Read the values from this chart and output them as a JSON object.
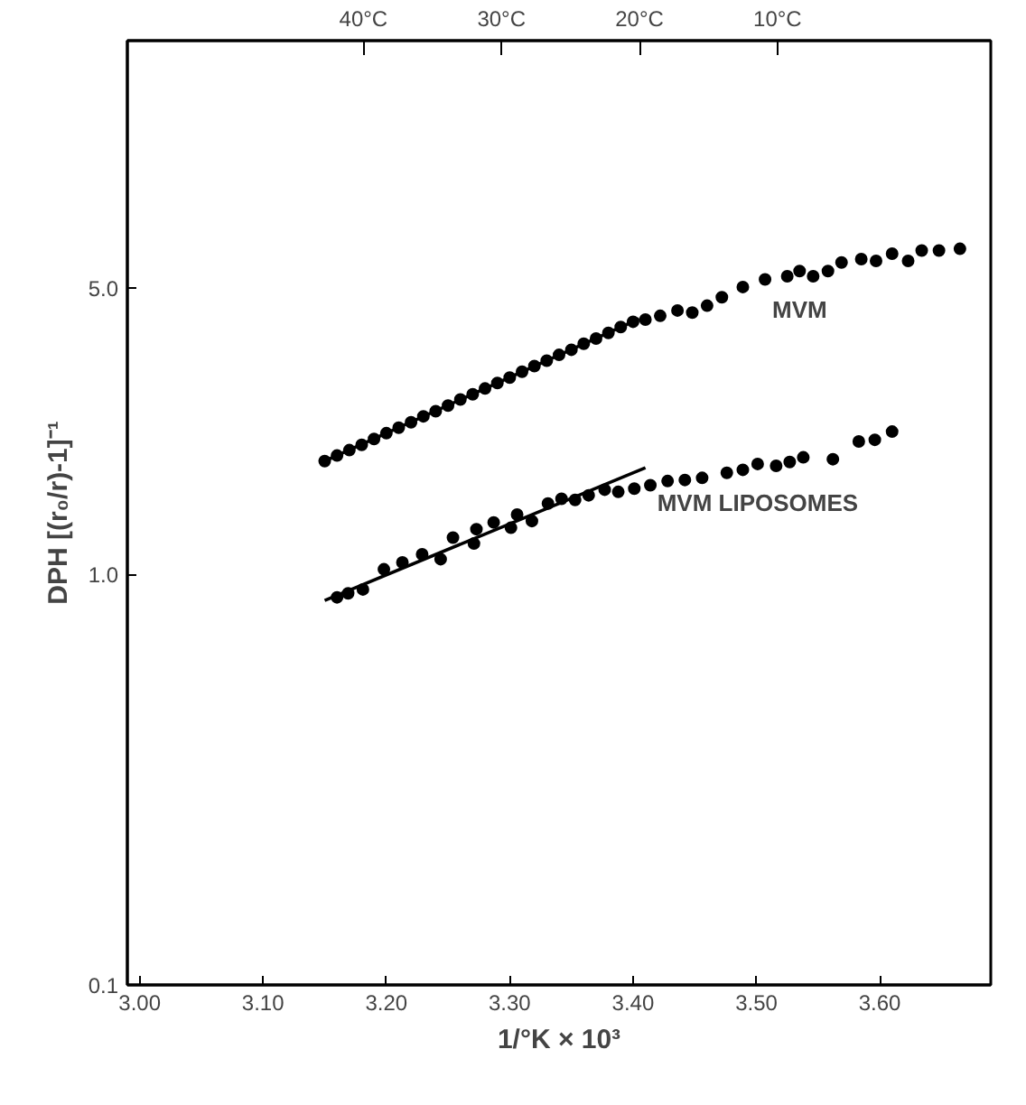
{
  "chart_data": {
    "type": "scatter",
    "xlabel": "1/°K × 10³",
    "ylabel": "DPH [(r₀/r)-1]⁻¹",
    "xlim": [
      2.99,
      3.69
    ],
    "xticks": [
      {
        "value": 3.0,
        "label": "3.00"
      },
      {
        "value": 3.1,
        "label": "3.10"
      },
      {
        "value": 3.2,
        "label": "3.20"
      },
      {
        "value": 3.3,
        "label": "3.30"
      },
      {
        "value": 3.4,
        "label": "3.40"
      },
      {
        "value": 3.5,
        "label": "3.50"
      },
      {
        "value": 3.6,
        "label": "3.60"
      }
    ],
    "ylim": [
      0.1,
      20
    ],
    "yticks": [
      0.1,
      {
        "value": 1,
        "label": "1.0"
      },
      {
        "value": 5,
        "label": "5.0"
      }
    ],
    "log": "y",
    "x2lim": [
      57.1,
      -5.45
    ],
    "x2ticks": [
      {
        "value": 40,
        "label": "40°C"
      },
      {
        "value": 30,
        "label": "30°C"
      },
      {
        "value": 20,
        "label": "20°C"
      },
      {
        "value": 10,
        "label": "10°C"
      }
    ],
    "grid": false,
    "legend": false,
    "series": [
      {
        "name": "MVM",
        "color": "#000000",
        "marker": "circle",
        "x": [
          3.15,
          3.16,
          3.17,
          3.18,
          3.19,
          3.2,
          3.21,
          3.22,
          3.23,
          3.24,
          3.25,
          3.26,
          3.27,
          3.28,
          3.29,
          3.3,
          3.31,
          3.32,
          3.33,
          3.34,
          3.35,
          3.36,
          3.37,
          3.38,
          3.39,
          3.4,
          3.41,
          3.422,
          3.436,
          3.448,
          3.46,
          3.472,
          3.489,
          3.507,
          3.525,
          3.535,
          3.546,
          3.558,
          3.569,
          3.585,
          3.597,
          3.61,
          3.623,
          3.634,
          3.648,
          3.665
        ],
        "values": [
          1.89,
          1.95,
          2.01,
          2.07,
          2.14,
          2.21,
          2.28,
          2.35,
          2.43,
          2.5,
          2.58,
          2.67,
          2.75,
          2.84,
          2.93,
          3.02,
          3.12,
          3.22,
          3.32,
          3.43,
          3.53,
          3.65,
          3.76,
          3.88,
          4.01,
          4.13,
          4.18,
          4.27,
          4.4,
          4.35,
          4.52,
          4.74,
          5.02,
          5.24,
          5.33,
          5.49,
          5.33,
          5.49,
          5.76,
          5.87,
          5.81,
          6.05,
          5.81,
          6.16,
          6.16,
          6.22
        ]
      },
      {
        "name": "MVM LIPOSOMES",
        "color": "#000000",
        "marker": "circle",
        "x": [
          3.16,
          3.169,
          3.181,
          3.198,
          3.213,
          3.229,
          3.244,
          3.254,
          3.271,
          3.273,
          3.287,
          3.301,
          3.306,
          3.318,
          3.331,
          3.342,
          3.353,
          3.364,
          3.377,
          3.388,
          3.401,
          3.414,
          3.428,
          3.442,
          3.456,
          3.476,
          3.489,
          3.501,
          3.516,
          3.527,
          3.538,
          3.562,
          3.583,
          3.596,
          3.61
        ],
        "values": [
          0.88,
          0.9,
          0.92,
          1.03,
          1.07,
          1.12,
          1.09,
          1.23,
          1.19,
          1.29,
          1.34,
          1.3,
          1.4,
          1.35,
          1.49,
          1.53,
          1.52,
          1.56,
          1.61,
          1.59,
          1.62,
          1.65,
          1.69,
          1.7,
          1.72,
          1.77,
          1.8,
          1.86,
          1.84,
          1.88,
          1.93,
          1.91,
          2.11,
          2.13,
          2.23
        ]
      },
      {
        "type": "line",
        "color": "#000000",
        "x": [
          3.15,
          3.405
        ],
        "values": [
          1.89,
          4.2
        ],
        "line_style": "solid",
        "marker": "none"
      },
      {
        "type": "line",
        "color": "#000000",
        "x": [
          3.15,
          3.41
        ],
        "values": [
          0.865,
          1.82
        ],
        "line_style": "solid",
        "marker": "none"
      }
    ]
  }
}
